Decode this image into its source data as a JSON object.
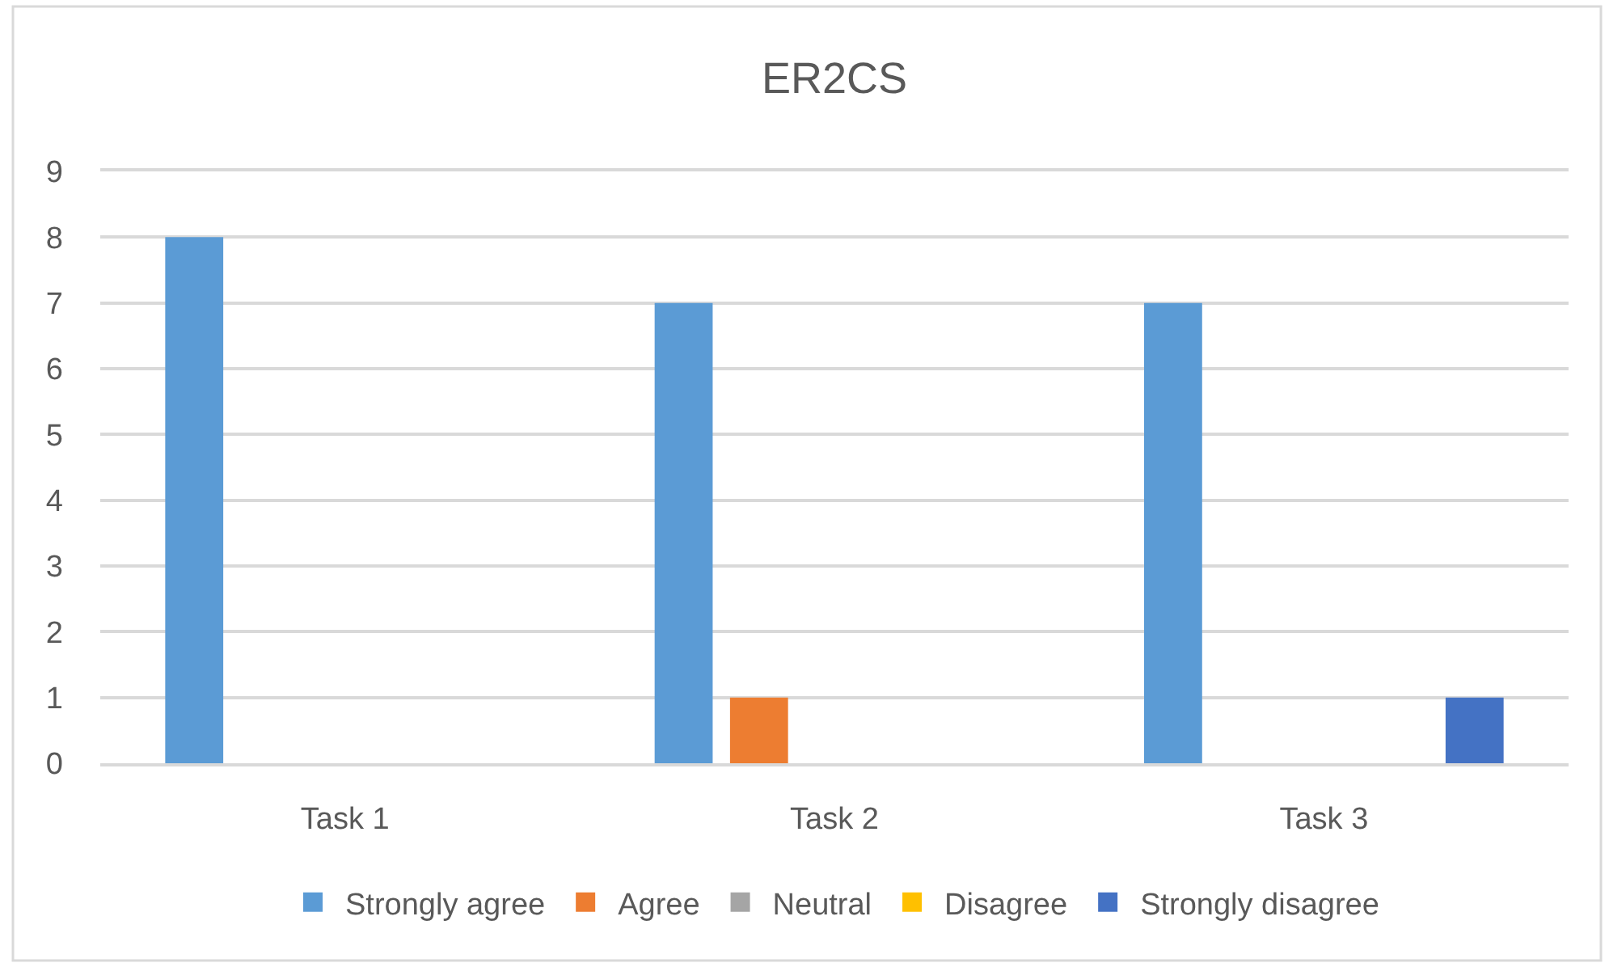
{
  "chart_data": {
    "type": "bar",
    "title": "ER2CS",
    "categories": [
      "Task 1",
      "Task 2",
      "Task 3"
    ],
    "series": [
      {
        "name": "Strongly agree",
        "color": "#5b9bd5",
        "values": [
          8,
          7,
          7
        ]
      },
      {
        "name": "Agree",
        "color": "#ed7d31",
        "values": [
          0,
          1,
          0
        ]
      },
      {
        "name": "Neutral",
        "color": "#a5a5a5",
        "values": [
          0,
          0,
          0
        ]
      },
      {
        "name": "Disagree",
        "color": "#ffc000",
        "values": [
          0,
          0,
          0
        ]
      },
      {
        "name": "Strongly disagree",
        "color": "#4472c4",
        "values": [
          0,
          0,
          1
        ]
      }
    ],
    "ylim": [
      0,
      9
    ],
    "yticks": [
      0,
      1,
      2,
      3,
      4,
      5,
      6,
      7,
      8,
      9
    ],
    "grid": "y",
    "legend": "bottom"
  }
}
